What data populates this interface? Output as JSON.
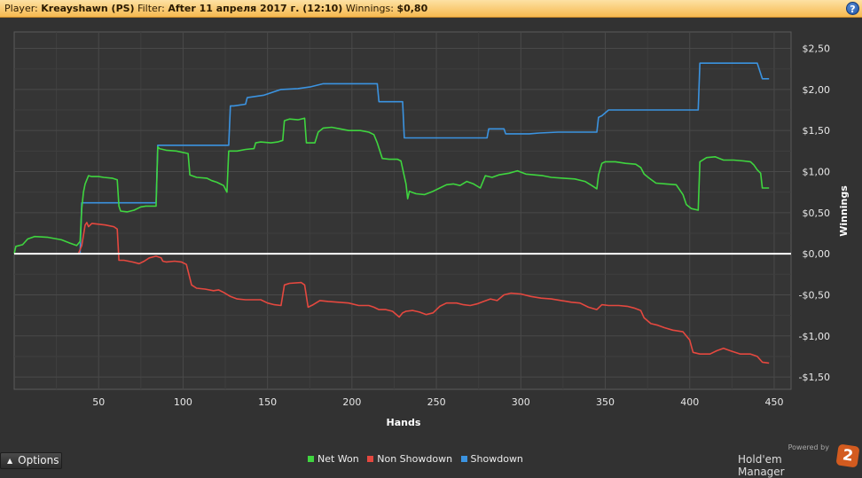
{
  "header": {
    "player_label": "Player:",
    "player_value": "Kreayshawn (PS)",
    "filter_label": "Filter:",
    "filter_value": "After 11 апреля 2017 г. (12:10)",
    "winnings_label": "Winnings:",
    "winnings_value": "$0,80",
    "help_glyph": "?"
  },
  "footer": {
    "options_label": "Options",
    "powered_by": "Powered by",
    "brand": "Hold'em Manager",
    "brand_mark": "2"
  },
  "colors": {
    "net_won": "#3fd53f",
    "non_showdown": "#e5483f",
    "showdown": "#3b93e0",
    "zero_line": "#ffffff",
    "grid": "#4a4a4a"
  },
  "chart_data": {
    "type": "line",
    "xlabel": "Hands",
    "ylabel": "Winnings",
    "xlim": [
      0,
      460
    ],
    "ylim": [
      -1.65,
      2.7
    ],
    "x_ticks": [
      50,
      100,
      150,
      200,
      250,
      300,
      350,
      400,
      450
    ],
    "x_tick_labels": [
      "50",
      "100",
      "150",
      "200",
      "250",
      "300",
      "350",
      "400",
      "450"
    ],
    "y_ticks": [
      2.5,
      2.0,
      1.5,
      1.0,
      0.5,
      0.0,
      -0.5,
      -1.0,
      -1.5
    ],
    "y_tick_labels": [
      "$2,50",
      "$2,00",
      "$1,50",
      "$1,00",
      "$0,50",
      "$0,00",
      "-$0,50",
      "-$1,00",
      "-$1,50"
    ],
    "grid": true,
    "legend_position": "bottom-center",
    "series": [
      {
        "name": "Net Won",
        "points": [
          [
            0,
            0
          ],
          [
            1,
            0.09
          ],
          [
            5,
            0.11
          ],
          [
            8,
            0.18
          ],
          [
            12,
            0.21
          ],
          [
            20,
            0.2
          ],
          [
            28,
            0.17
          ],
          [
            33,
            0.13
          ],
          [
            37,
            0.1
          ],
          [
            39,
            0.15
          ],
          [
            40,
            0.55
          ],
          [
            41,
            0.75
          ],
          [
            42,
            0.85
          ],
          [
            44,
            0.95
          ],
          [
            46,
            0.94
          ],
          [
            50,
            0.94
          ],
          [
            53,
            0.93
          ],
          [
            58,
            0.92
          ],
          [
            61,
            0.9
          ],
          [
            62,
            0.58
          ],
          [
            63,
            0.52
          ],
          [
            67,
            0.51
          ],
          [
            71,
            0.53
          ],
          [
            75,
            0.57
          ],
          [
            78,
            0.58
          ],
          [
            84,
            0.58
          ],
          [
            85,
            1.3
          ],
          [
            86,
            1.28
          ],
          [
            90,
            1.26
          ],
          [
            96,
            1.25
          ],
          [
            103,
            1.22
          ],
          [
            104,
            0.96
          ],
          [
            108,
            0.93
          ],
          [
            114,
            0.92
          ],
          [
            117,
            0.89
          ],
          [
            120,
            0.87
          ],
          [
            124,
            0.83
          ],
          [
            126,
            0.75
          ],
          [
            127,
            1.25
          ],
          [
            132,
            1.25
          ],
          [
            137,
            1.27
          ],
          [
            142,
            1.28
          ],
          [
            143,
            1.35
          ],
          [
            146,
            1.36
          ],
          [
            152,
            1.35
          ],
          [
            156,
            1.36
          ],
          [
            159,
            1.38
          ],
          [
            160,
            1.62
          ],
          [
            163,
            1.64
          ],
          [
            168,
            1.63
          ],
          [
            172,
            1.65
          ],
          [
            173,
            1.35
          ],
          [
            178,
            1.35
          ],
          [
            180,
            1.48
          ],
          [
            183,
            1.53
          ],
          [
            188,
            1.54
          ],
          [
            193,
            1.52
          ],
          [
            198,
            1.5
          ],
          [
            205,
            1.5
          ],
          [
            210,
            1.48
          ],
          [
            213,
            1.45
          ],
          [
            215,
            1.35
          ],
          [
            218,
            1.16
          ],
          [
            222,
            1.15
          ],
          [
            227,
            1.15
          ],
          [
            229,
            1.13
          ],
          [
            232,
            0.85
          ],
          [
            233,
            0.67
          ],
          [
            234,
            0.76
          ],
          [
            238,
            0.73
          ],
          [
            243,
            0.72
          ],
          [
            248,
            0.76
          ],
          [
            252,
            0.8
          ],
          [
            256,
            0.84
          ],
          [
            260,
            0.85
          ],
          [
            264,
            0.83
          ],
          [
            268,
            0.88
          ],
          [
            272,
            0.85
          ],
          [
            276,
            0.8
          ],
          [
            279,
            0.95
          ],
          [
            283,
            0.93
          ],
          [
            287,
            0.96
          ],
          [
            293,
            0.98
          ],
          [
            298,
            1.01
          ],
          [
            303,
            0.97
          ],
          [
            308,
            0.96
          ],
          [
            313,
            0.95
          ],
          [
            318,
            0.93
          ],
          [
            325,
            0.92
          ],
          [
            332,
            0.91
          ],
          [
            338,
            0.88
          ],
          [
            342,
            0.83
          ],
          [
            345,
            0.79
          ],
          [
            346,
            0.96
          ],
          [
            348,
            1.1
          ],
          [
            350,
            1.12
          ],
          [
            356,
            1.12
          ],
          [
            362,
            1.1
          ],
          [
            368,
            1.09
          ],
          [
            371,
            1.05
          ],
          [
            373,
            0.97
          ],
          [
            376,
            0.92
          ],
          [
            380,
            0.86
          ],
          [
            386,
            0.85
          ],
          [
            392,
            0.84
          ],
          [
            396,
            0.72
          ],
          [
            398,
            0.6
          ],
          [
            401,
            0.55
          ],
          [
            405,
            0.53
          ],
          [
            406,
            1.12
          ],
          [
            410,
            1.17
          ],
          [
            415,
            1.18
          ],
          [
            420,
            1.14
          ],
          [
            426,
            1.14
          ],
          [
            432,
            1.13
          ],
          [
            436,
            1.12
          ],
          [
            438,
            1.08
          ],
          [
            440,
            1.02
          ],
          [
            442,
            0.98
          ],
          [
            443,
            0.8
          ],
          [
            447,
            0.8
          ]
        ]
      },
      {
        "name": "Non Showdown",
        "points": [
          [
            0,
            0
          ],
          [
            38,
            0
          ],
          [
            39,
            0.05
          ],
          [
            40,
            0.1
          ],
          [
            42,
            0.35
          ],
          [
            43,
            0.38
          ],
          [
            44,
            0.33
          ],
          [
            46,
            0.37
          ],
          [
            50,
            0.36
          ],
          [
            54,
            0.35
          ],
          [
            59,
            0.33
          ],
          [
            61,
            0.3
          ],
          [
            62,
            -0.08
          ],
          [
            65,
            -0.08
          ],
          [
            70,
            -0.1
          ],
          [
            74,
            -0.12
          ],
          [
            77,
            -0.09
          ],
          [
            80,
            -0.05
          ],
          [
            84,
            -0.03
          ],
          [
            87,
            -0.05
          ],
          [
            88,
            -0.09
          ],
          [
            90,
            -0.1
          ],
          [
            95,
            -0.09
          ],
          [
            99,
            -0.1
          ],
          [
            102,
            -0.13
          ],
          [
            105,
            -0.38
          ],
          [
            108,
            -0.42
          ],
          [
            113,
            -0.43
          ],
          [
            118,
            -0.45
          ],
          [
            121,
            -0.44
          ],
          [
            124,
            -0.47
          ],
          [
            128,
            -0.52
          ],
          [
            132,
            -0.55
          ],
          [
            137,
            -0.56
          ],
          [
            142,
            -0.56
          ],
          [
            146,
            -0.56
          ],
          [
            150,
            -0.6
          ],
          [
            154,
            -0.62
          ],
          [
            158,
            -0.63
          ],
          [
            160,
            -0.38
          ],
          [
            163,
            -0.36
          ],
          [
            170,
            -0.35
          ],
          [
            172,
            -0.38
          ],
          [
            174,
            -0.65
          ],
          [
            177,
            -0.62
          ],
          [
            181,
            -0.57
          ],
          [
            186,
            -0.58
          ],
          [
            192,
            -0.59
          ],
          [
            198,
            -0.6
          ],
          [
            204,
            -0.63
          ],
          [
            210,
            -0.63
          ],
          [
            213,
            -0.65
          ],
          [
            216,
            -0.68
          ],
          [
            220,
            -0.68
          ],
          [
            224,
            -0.7
          ],
          [
            228,
            -0.77
          ],
          [
            230,
            -0.72
          ],
          [
            232,
            -0.7
          ],
          [
            236,
            -0.69
          ],
          [
            240,
            -0.71
          ],
          [
            244,
            -0.74
          ],
          [
            248,
            -0.72
          ],
          [
            252,
            -0.64
          ],
          [
            256,
            -0.6
          ],
          [
            262,
            -0.6
          ],
          [
            266,
            -0.62
          ],
          [
            270,
            -0.63
          ],
          [
            274,
            -0.61
          ],
          [
            278,
            -0.58
          ],
          [
            282,
            -0.55
          ],
          [
            286,
            -0.57
          ],
          [
            290,
            -0.5
          ],
          [
            294,
            -0.48
          ],
          [
            300,
            -0.49
          ],
          [
            306,
            -0.52
          ],
          [
            312,
            -0.54
          ],
          [
            318,
            -0.55
          ],
          [
            324,
            -0.57
          ],
          [
            330,
            -0.59
          ],
          [
            335,
            -0.6
          ],
          [
            340,
            -0.65
          ],
          [
            345,
            -0.68
          ],
          [
            348,
            -0.62
          ],
          [
            352,
            -0.63
          ],
          [
            358,
            -0.63
          ],
          [
            363,
            -0.64
          ],
          [
            367,
            -0.66
          ],
          [
            371,
            -0.69
          ],
          [
            373,
            -0.78
          ],
          [
            377,
            -0.85
          ],
          [
            381,
            -0.87
          ],
          [
            385,
            -0.9
          ],
          [
            390,
            -0.93
          ],
          [
            396,
            -0.95
          ],
          [
            400,
            -1.05
          ],
          [
            402,
            -1.2
          ],
          [
            406,
            -1.22
          ],
          [
            412,
            -1.22
          ],
          [
            416,
            -1.18
          ],
          [
            420,
            -1.15
          ],
          [
            424,
            -1.18
          ],
          [
            430,
            -1.22
          ],
          [
            436,
            -1.22
          ],
          [
            440,
            -1.25
          ],
          [
            443,
            -1.32
          ],
          [
            447,
            -1.33
          ]
        ]
      },
      {
        "name": "Showdown",
        "points": [
          [
            0,
            0
          ],
          [
            39,
            0
          ],
          [
            40,
            0.62
          ],
          [
            45,
            0.62
          ],
          [
            61,
            0.62
          ],
          [
            62,
            0.62
          ],
          [
            84,
            0.62
          ],
          [
            85,
            1.32
          ],
          [
            127,
            1.32
          ],
          [
            128,
            1.8
          ],
          [
            130,
            1.8
          ],
          [
            137,
            1.82
          ],
          [
            138,
            1.9
          ],
          [
            148,
            1.93
          ],
          [
            155,
            1.98
          ],
          [
            158,
            2.0
          ],
          [
            168,
            2.01
          ],
          [
            175,
            2.03
          ],
          [
            183,
            2.07
          ],
          [
            215,
            2.07
          ],
          [
            216,
            1.85
          ],
          [
            230,
            1.85
          ],
          [
            231,
            1.41
          ],
          [
            280,
            1.41
          ],
          [
            281,
            1.52
          ],
          [
            290,
            1.52
          ],
          [
            291,
            1.46
          ],
          [
            305,
            1.46
          ],
          [
            311,
            1.47
          ],
          [
            322,
            1.48
          ],
          [
            345,
            1.48
          ],
          [
            346,
            1.66
          ],
          [
            348,
            1.68
          ],
          [
            352,
            1.75
          ],
          [
            405,
            1.75
          ],
          [
            406,
            2.32
          ],
          [
            437,
            2.32
          ],
          [
            440,
            2.32
          ],
          [
            443,
            2.13
          ],
          [
            447,
            2.13
          ]
        ]
      }
    ]
  }
}
